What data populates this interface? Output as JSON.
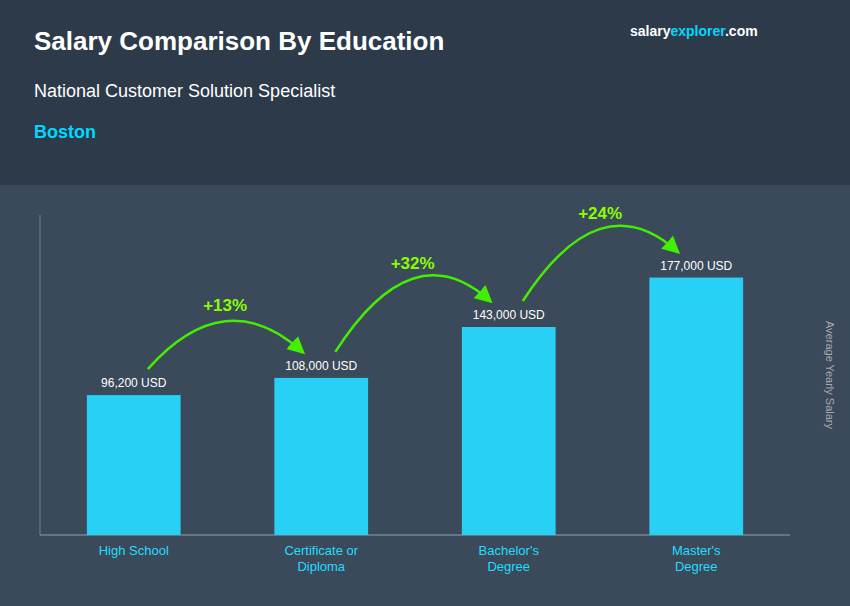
{
  "chart_data": {
    "type": "bar",
    "title": "Salary Comparison By Education",
    "subtitle": "National Customer Solution Specialist",
    "ylabel": "Average Yearly Salary",
    "categories": [
      "High School",
      "Certificate or\nDiploma",
      "Bachelor's\nDegree",
      "Master's\nDegree"
    ],
    "values": [
      96200,
      108000,
      143000,
      177000
    ],
    "value_labels": [
      "96,200 USD",
      "108,000 USD",
      "143,000 USD",
      "177,000 USD"
    ],
    "data_labels": true,
    "color": "#29d0f5",
    "ylim": [
      0,
      220000
    ],
    "tick_labels": "x",
    "grid": false,
    "annotations": {
      "city": "Boston",
      "watermark": [
        "salary",
        "explorer",
        ".com"
      ],
      "changes": [
        "+13%",
        "+32%",
        "+24%"
      ]
    }
  }
}
